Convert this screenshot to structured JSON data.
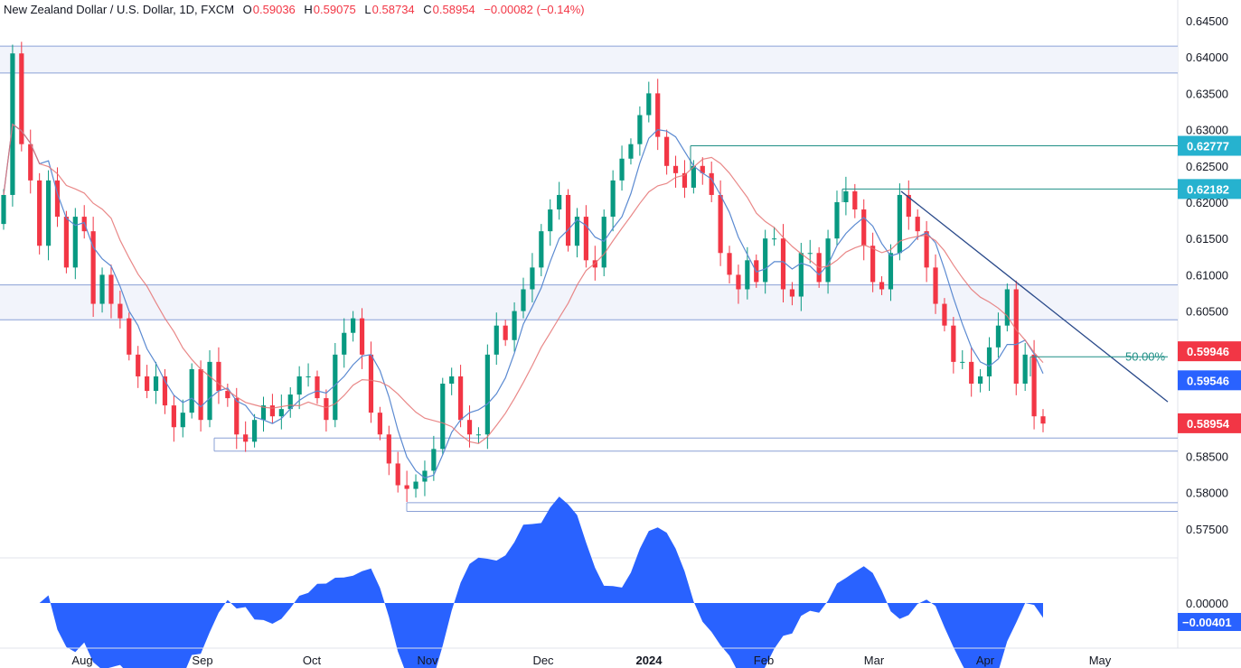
{
  "header": {
    "symbol": "New Zealand Dollar / U.S. Dollar, 1D, FXCM",
    "o_label": "O",
    "o": "0.59036",
    "h_label": "H",
    "h": "0.59075",
    "l_label": "L",
    "l": "0.58734",
    "c_label": "C",
    "c": "0.58954",
    "change": "−0.00082 (−0.14%)"
  },
  "colors": {
    "up": "#089981",
    "down": "#f23645",
    "sma_fast": "#5b8ad1",
    "sma_slow": "#e57373",
    "levels": "#8aa0d6",
    "trendline": "#2a4a8a",
    "fib": "#1f8f86",
    "tag_teal": "#26b2cf",
    "tag_red": "#f23645",
    "tag_blue": "#2962ff",
    "oscillator": "#2962ff",
    "text": "#131722",
    "zone": "#f2f4fb"
  },
  "chart_data": [
    {
      "type": "candlestick",
      "title": "New Zealand Dollar / U.S. Dollar, 1D, FXCM",
      "x_axis": {
        "ticks": [
          "Aug",
          "Sep",
          "Oct",
          "Nov",
          "Dec",
          "2024",
          "Feb",
          "Mar",
          "Apr",
          "May"
        ]
      },
      "y_axis": {
        "ylim": [
          0.5725,
          0.647
        ],
        "ticks": [
          "0.64500",
          "0.64000",
          "0.63500",
          "0.63000",
          "0.62500",
          "0.62000",
          "0.61500",
          "0.61000",
          "0.60500",
          "0.60000",
          "0.59500",
          "0.59000",
          "0.58500",
          "0.58000",
          "0.57500"
        ],
        "tick_values": [
          0.645,
          0.64,
          0.635,
          0.63,
          0.625,
          0.62,
          0.615,
          0.61,
          0.605,
          0.6,
          0.595,
          0.59,
          0.585,
          0.58,
          0.575
        ]
      },
      "price_path": [
        [
          0.618,
          0.621
        ],
        [
          0.6395,
          0.6405
        ],
        [
          0.625,
          0.628
        ],
        [
          0.6205,
          0.623
        ],
        [
          0.61,
          0.614
        ],
        [
          0.619,
          0.623
        ],
        [
          0.615,
          0.618
        ],
        [
          0.608,
          0.611
        ],
        [
          0.616,
          0.618
        ],
        [
          0.614,
          0.616
        ],
        [
          0.607,
          0.606
        ],
        [
          0.608,
          0.61
        ],
        [
          0.605,
          0.606
        ],
        [
          0.603,
          0.604
        ],
        [
          0.598,
          0.599
        ],
        [
          0.595,
          0.596
        ],
        [
          0.592,
          0.594
        ],
        [
          0.596,
          0.596
        ],
        [
          0.59,
          0.592
        ],
        [
          0.588,
          0.589
        ],
        [
          0.592,
          0.591
        ],
        [
          0.598,
          0.597
        ],
        [
          0.591,
          0.59
        ],
        [
          0.596,
          0.598
        ],
        [
          0.597,
          0.594
        ],
        [
          0.594,
          0.593
        ],
        [
          0.5885,
          0.588
        ],
        [
          0.5875,
          0.587
        ],
        [
          0.588,
          0.59
        ],
        [
          0.591,
          0.592
        ],
        [
          0.59,
          0.5905
        ],
        [
          0.592,
          0.5915
        ],
        [
          0.593,
          0.5935
        ],
        [
          0.594,
          0.596
        ],
        [
          0.596,
          0.596
        ],
        [
          0.592,
          0.593
        ],
        [
          0.591,
          0.59
        ],
        [
          0.595,
          0.599
        ],
        [
          0.6,
          0.602
        ],
        [
          0.605,
          0.604
        ],
        [
          0.598,
          0.599
        ],
        [
          0.592,
          0.591
        ],
        [
          0.589,
          0.588
        ],
        [
          0.586,
          0.584
        ],
        [
          0.582,
          0.581
        ],
        [
          0.58,
          0.5805
        ],
        [
          0.5825,
          0.5815
        ],
        [
          0.583,
          0.583
        ],
        [
          0.585,
          0.586
        ],
        [
          0.591,
          0.595
        ],
        [
          0.596,
          0.596
        ],
        [
          0.592,
          0.59
        ],
        [
          0.589,
          0.588
        ],
        [
          0.5875,
          0.588
        ],
        [
          0.595,
          0.599
        ],
        [
          0.602,
          0.603
        ],
        [
          0.599,
          0.601
        ],
        [
          0.604,
          0.605
        ],
        [
          0.607,
          0.608
        ],
        [
          0.609,
          0.611
        ],
        [
          0.613,
          0.616
        ],
        [
          0.617,
          0.619
        ],
        [
          0.62,
          0.621
        ],
        [
          0.615,
          0.614
        ],
        [
          0.617,
          0.618
        ],
        [
          0.615,
          0.612
        ],
        [
          0.613,
          0.611
        ],
        [
          0.616,
          0.618
        ],
        [
          0.621,
          0.623
        ],
        [
          0.624,
          0.626
        ],
        [
          0.627,
          0.628
        ],
        [
          0.63,
          0.632
        ],
        [
          0.633,
          0.635
        ],
        [
          0.63,
          0.629
        ],
        [
          0.626,
          0.625
        ],
        [
          0.624,
          0.624
        ],
        [
          0.623,
          0.622
        ],
        [
          0.6245,
          0.625
        ],
        [
          0.623,
          0.624
        ],
        [
          0.624,
          0.621
        ],
        [
          0.615,
          0.613
        ],
        [
          0.611,
          0.61
        ],
        [
          0.609,
          0.608
        ],
        [
          0.611,
          0.612
        ],
        [
          0.61,
          0.609
        ],
        [
          0.613,
          0.615
        ],
        [
          0.614,
          0.615
        ],
        [
          0.61,
          0.608
        ],
        [
          0.608,
          0.607
        ],
        [
          0.611,
          0.613
        ],
        [
          0.614,
          0.613
        ],
        [
          0.61,
          0.609
        ],
        [
          0.611,
          0.615
        ],
        [
          0.618,
          0.62
        ],
        [
          0.621,
          0.6215
        ],
        [
          0.6195,
          0.619
        ],
        [
          0.616,
          0.614
        ],
        [
          0.61,
          0.609
        ],
        [
          0.609,
          0.608
        ],
        [
          0.61,
          0.613
        ],
        [
          0.619,
          0.621
        ],
        [
          0.618,
          0.618
        ],
        [
          0.617,
          0.616
        ],
        [
          0.613,
          0.611
        ],
        [
          0.608,
          0.606
        ],
        [
          0.604,
          0.603
        ],
        [
          0.599,
          0.598
        ],
        [
          0.599,
          0.598
        ],
        [
          0.596,
          0.595
        ],
        [
          0.595,
          0.596
        ],
        [
          0.599,
          0.6
        ],
        [
          0.602,
          0.603
        ],
        [
          0.607,
          0.608
        ],
        [
          0.596,
          0.595
        ],
        [
          0.598,
          0.599
        ],
        [
          0.593,
          0.5905
        ],
        [
          0.5895,
          0.5895
        ]
      ],
      "sma_fast_label": "blue moving average",
      "sma_slow_label": "red moving average",
      "horizontal_levels": [
        0.6415,
        0.6378,
        0.6086,
        0.6038,
        0.5875,
        0.5857,
        0.5786,
        0.5774
      ],
      "support_resistance_tags": [
        {
          "label": "0.62777",
          "value": 0.62777,
          "color": "tag_teal"
        },
        {
          "label": "0.62182",
          "value": 0.62182,
          "color": "tag_teal"
        },
        {
          "label": "0.59946",
          "value": 0.59946,
          "color": "tag_red"
        },
        {
          "label": "0.59546",
          "value": 0.59546,
          "color": "tag_blue"
        },
        {
          "label": "0.58954",
          "value": 0.58954,
          "color": "tag_red"
        }
      ],
      "fib": {
        "label": "50.00%",
        "value": 0.5987
      },
      "trendline": {
        "from": 0.6215,
        "to": 0.5925
      }
    },
    {
      "type": "area",
      "title": "oscillator",
      "y_axis": {
        "ticks": [
          "0.00000"
        ],
        "tick_values": [
          0
        ]
      },
      "last_value_label": "−0.00401",
      "last_value": -0.00401
    }
  ]
}
